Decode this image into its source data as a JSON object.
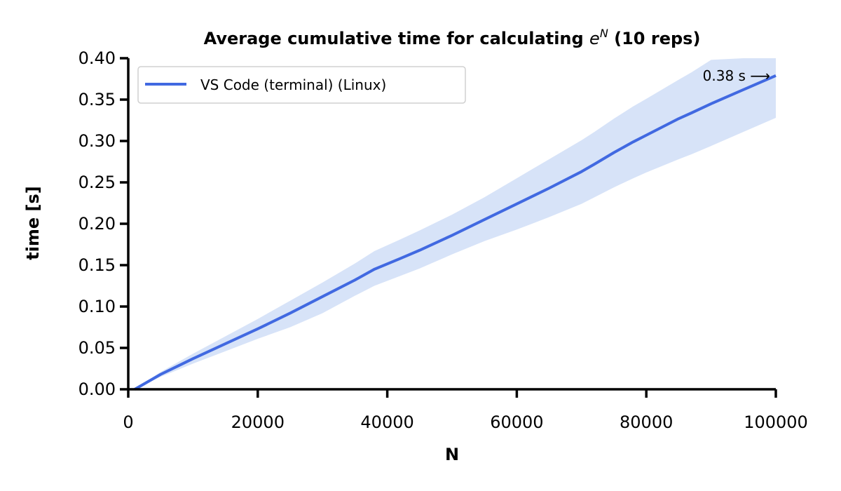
{
  "chart_data": {
    "type": "line",
    "title": {
      "prefix": "Average cumulative time for calculating ",
      "math_base": "e",
      "math_sup": "N",
      "suffix": " (10 reps)"
    },
    "xlabel": "N",
    "ylabel": "time [s]",
    "xlim": [
      0,
      100000
    ],
    "ylim": [
      0,
      0.4
    ],
    "xticks": [
      0,
      20000,
      40000,
      60000,
      80000,
      100000
    ],
    "xtick_labels": [
      "0",
      "20000",
      "40000",
      "60000",
      "80000",
      "100000"
    ],
    "yticks": [
      0,
      0.05,
      0.1,
      0.15,
      0.2,
      0.25,
      0.3,
      0.35,
      0.4
    ],
    "ytick_labels": [
      "0.00",
      "0.05",
      "0.10",
      "0.15",
      "0.20",
      "0.25",
      "0.30",
      "0.35",
      "0.40"
    ],
    "grid": false,
    "legend_position": "upper-left",
    "series": [
      {
        "name": "VS Code (terminal) (Linux)",
        "color": "#4169e1",
        "band_color": "#d7e3f8",
        "x": [
          1000,
          5000,
          10000,
          15000,
          20000,
          25000,
          30000,
          35000,
          38000,
          42000,
          45000,
          50000,
          55000,
          60000,
          65000,
          70000,
          72000,
          75000,
          78000,
          80000,
          85000,
          87000,
          90000,
          95000,
          100000
        ],
        "y": [
          0.0,
          0.018,
          0.037,
          0.055,
          0.073,
          0.092,
          0.112,
          0.132,
          0.145,
          0.158,
          0.168,
          0.186,
          0.205,
          0.224,
          0.243,
          0.263,
          0.272,
          0.286,
          0.299,
          0.307,
          0.327,
          0.334,
          0.345,
          0.362,
          0.379
        ],
        "y_lower": [
          0.0,
          0.015,
          0.031,
          0.046,
          0.061,
          0.075,
          0.092,
          0.113,
          0.125,
          0.137,
          0.146,
          0.163,
          0.179,
          0.193,
          0.208,
          0.224,
          0.232,
          0.244,
          0.255,
          0.262,
          0.278,
          0.284,
          0.294,
          0.311,
          0.328
        ],
        "y_upper": [
          0.0,
          0.021,
          0.043,
          0.064,
          0.085,
          0.107,
          0.129,
          0.152,
          0.167,
          0.181,
          0.192,
          0.211,
          0.232,
          0.255,
          0.278,
          0.301,
          0.311,
          0.327,
          0.342,
          0.351,
          0.374,
          0.383,
          0.398,
          0.4,
          0.4
        ]
      }
    ],
    "annotations": [
      {
        "text": "0.38 s ⟶",
        "x": 100000,
        "y": 0.379
      }
    ]
  }
}
